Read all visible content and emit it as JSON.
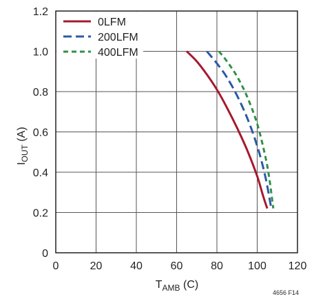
{
  "chart_data": {
    "type": "line",
    "xlabel": {
      "main": "T",
      "sub": "AMB",
      "suffix": " (C)"
    },
    "ylabel": {
      "main": "I",
      "sub": "OUT",
      "suffix": " (A)"
    },
    "xlim": [
      0,
      120
    ],
    "ylim": [
      0,
      1.2
    ],
    "x_ticks": [
      0,
      20,
      40,
      60,
      80,
      100,
      120
    ],
    "y_ticks": [
      0,
      0.2,
      0.4,
      0.6,
      0.8,
      1.0,
      1.2
    ],
    "x_tick_labels": [
      "0",
      "20",
      "40",
      "60",
      "80",
      "100",
      "120"
    ],
    "y_tick_labels": [
      "0",
      "0.2",
      "0.4",
      "0.6",
      "0.8",
      "1.0",
      "1.2"
    ],
    "grid": true,
    "legend_position": "top-left",
    "series": [
      {
        "name": "0LFM",
        "color": "#a6192e",
        "dash": "solid",
        "x": [
          65,
          70,
          75,
          80,
          85,
          90,
          95,
          100,
          103,
          105
        ],
        "y": [
          1.0,
          0.95,
          0.885,
          0.81,
          0.72,
          0.62,
          0.51,
          0.38,
          0.28,
          0.22
        ]
      },
      {
        "name": "200LFM",
        "color": "#2a5aa8",
        "dash": "long-dash",
        "x": [
          75,
          80,
          85,
          90,
          95,
          100,
          104,
          107
        ],
        "y": [
          1.0,
          0.94,
          0.87,
          0.78,
          0.67,
          0.53,
          0.38,
          0.22
        ]
      },
      {
        "name": "400LFM",
        "color": "#2e9146",
        "dash": "short-dash",
        "x": [
          81,
          85,
          90,
          95,
          100,
          104,
          106,
          108
        ],
        "y": [
          1.0,
          0.95,
          0.875,
          0.775,
          0.64,
          0.48,
          0.37,
          0.22
        ]
      }
    ]
  },
  "figure_id": "4656 F14"
}
